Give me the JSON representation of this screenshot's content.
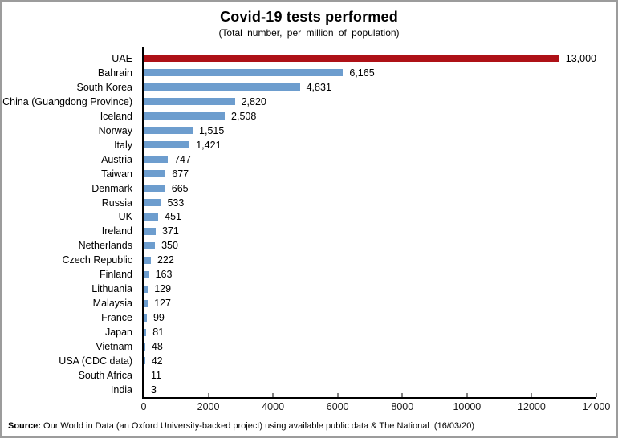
{
  "window": {
    "background": "#ffffff",
    "border_color": "#9c9c9c"
  },
  "chart_data": {
    "type": "bar",
    "orientation": "horizontal",
    "title": "Covid-19 tests performed",
    "subtitle": "(Total number, per million of population)",
    "categories": [
      "UAE",
      "Bahrain",
      "South Korea",
      "China (Guangdong Province)",
      "Iceland",
      "Norway",
      "Italy",
      "Austria",
      "Taiwan",
      "Denmark",
      "Russia",
      "UK",
      "Ireland",
      "Netherlands",
      "Czech Republic",
      "Finland",
      "Lithuania",
      "Malaysia",
      "France",
      "Japan",
      "Vietnam",
      "USA (CDC data)",
      "South Africa",
      "India"
    ],
    "values": [
      13000,
      6165,
      4831,
      2820,
      2508,
      1515,
      1421,
      747,
      677,
      665,
      533,
      451,
      371,
      350,
      222,
      163,
      129,
      127,
      99,
      81,
      48,
      42,
      11,
      3
    ],
    "value_labels": [
      "13,000",
      "6,165",
      "4,831",
      "2,820",
      "2,508",
      "1,515",
      "1,421",
      "747",
      "677",
      "665",
      "533",
      "451",
      "371",
      "350",
      "222",
      "163",
      "129",
      "127",
      "99",
      "81",
      "48",
      "42",
      "11",
      "3"
    ],
    "highlight_index": 0,
    "colors": {
      "bar_default": "#6D9DCE",
      "bar_highlight": "#AE1117",
      "axis": "#000000"
    },
    "xlim": [
      0,
      14000
    ],
    "x_ticks": [
      0,
      2000,
      4000,
      6000,
      8000,
      10000,
      12000,
      14000
    ],
    "x_tick_labels": [
      "0",
      "2000",
      "4000",
      "6000",
      "8000",
      "10000",
      "12000",
      "14000"
    ],
    "grid": false,
    "legend": "none"
  },
  "source": {
    "label": "Source:",
    "text": " Our World in Data (an Oxford University-backed project) using available public data & The National  (16/03/20)"
  }
}
